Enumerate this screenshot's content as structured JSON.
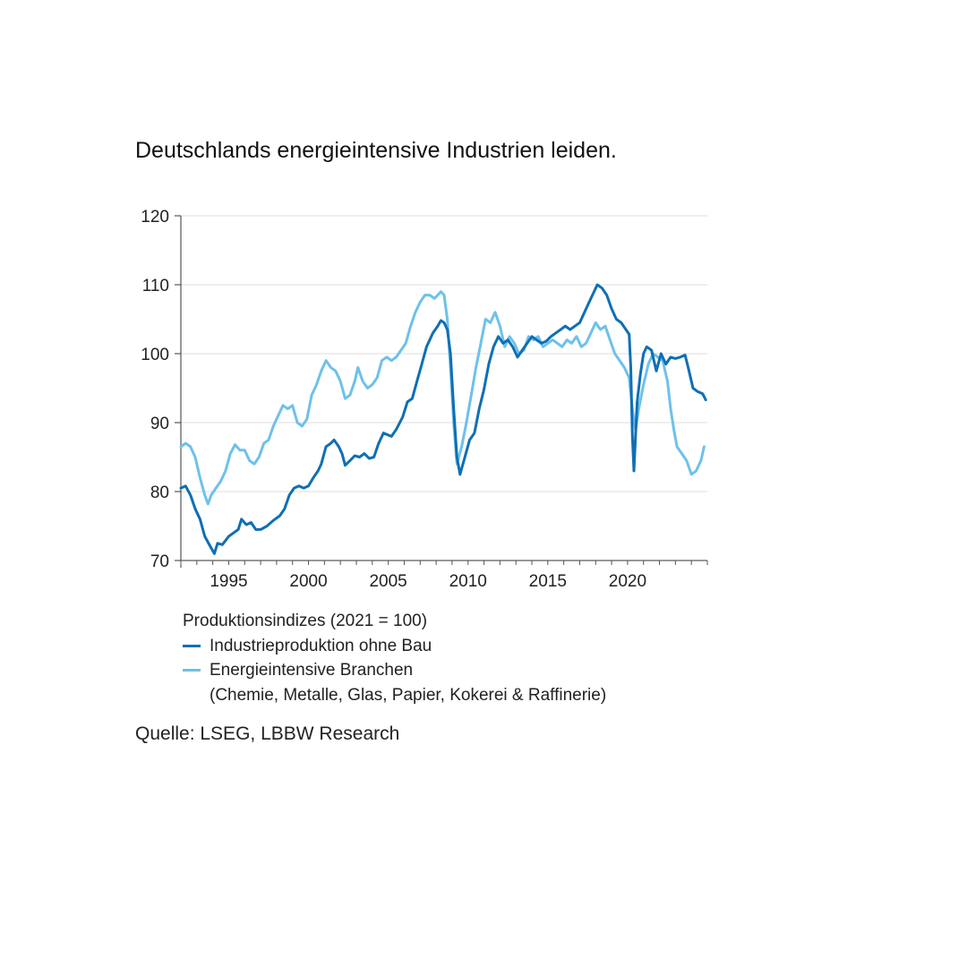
{
  "title": "Deutschlands energieintensive Industrien leiden.",
  "legend": {
    "heading": "Produktionsindizes (2021 = 100)",
    "items": [
      {
        "label": "Industrieproduktion ohne Bau",
        "color": "#0f6fb5"
      },
      {
        "label": "Energieintensive Branchen",
        "sublabel": "(Chemie, Metalle, Glas, Papier, Kokerei & Raffinerie)",
        "color": "#6ec1ea"
      }
    ]
  },
  "source": "Quelle: LSEG, LBBW Research",
  "chart_data": {
    "type": "line",
    "xlim": [
      1992.0,
      2025.0
    ],
    "ylim": [
      70,
      120
    ],
    "yticks": [
      70,
      80,
      90,
      100,
      110,
      120
    ],
    "xticks": [
      1995,
      2000,
      2005,
      2010,
      2015,
      2020
    ],
    "grid": true,
    "series": [
      {
        "name": "Industrieproduktion ohne Bau",
        "color": "#0f6fb5",
        "points": [
          [
            1992.0,
            80.5
          ],
          [
            1992.3,
            80.8
          ],
          [
            1992.6,
            79.5
          ],
          [
            1992.9,
            77.5
          ],
          [
            1993.2,
            76.0
          ],
          [
            1993.5,
            73.5
          ],
          [
            1993.9,
            71.8
          ],
          [
            1994.1,
            71.0
          ],
          [
            1994.3,
            72.5
          ],
          [
            1994.6,
            72.3
          ],
          [
            1995.0,
            73.5
          ],
          [
            1995.3,
            74.0
          ],
          [
            1995.6,
            74.5
          ],
          [
            1995.8,
            76.0
          ],
          [
            1996.1,
            75.2
          ],
          [
            1996.4,
            75.5
          ],
          [
            1996.7,
            74.5
          ],
          [
            1997.0,
            74.5
          ],
          [
            1997.4,
            75.0
          ],
          [
            1997.8,
            75.8
          ],
          [
            1998.2,
            76.5
          ],
          [
            1998.5,
            77.5
          ],
          [
            1998.8,
            79.5
          ],
          [
            1999.1,
            80.5
          ],
          [
            1999.4,
            80.8
          ],
          [
            1999.7,
            80.5
          ],
          [
            2000.0,
            80.8
          ],
          [
            2000.3,
            82.0
          ],
          [
            2000.6,
            83.0
          ],
          [
            2000.8,
            84.0
          ],
          [
            2001.1,
            86.5
          ],
          [
            2001.4,
            87.0
          ],
          [
            2001.6,
            87.5
          ],
          [
            2001.9,
            86.5
          ],
          [
            2002.1,
            85.5
          ],
          [
            2002.3,
            83.8
          ],
          [
            2002.6,
            84.5
          ],
          [
            2002.9,
            85.2
          ],
          [
            2003.2,
            85.0
          ],
          [
            2003.5,
            85.5
          ],
          [
            2003.8,
            84.8
          ],
          [
            2004.1,
            85.0
          ],
          [
            2004.4,
            87.0
          ],
          [
            2004.7,
            88.5
          ],
          [
            2005.0,
            88.2
          ],
          [
            2005.2,
            88.0
          ],
          [
            2005.5,
            89.0
          ],
          [
            2005.9,
            90.8
          ],
          [
            2006.2,
            93.0
          ],
          [
            2006.5,
            93.5
          ],
          [
            2006.8,
            96.0
          ],
          [
            2007.1,
            98.5
          ],
          [
            2007.4,
            101.0
          ],
          [
            2007.8,
            103.0
          ],
          [
            2008.1,
            104.0
          ],
          [
            2008.3,
            104.8
          ],
          [
            2008.5,
            104.5
          ],
          [
            2008.7,
            103.5
          ],
          [
            2008.9,
            100.0
          ],
          [
            2009.1,
            92.0
          ],
          [
            2009.3,
            85.0
          ],
          [
            2009.5,
            82.5
          ],
          [
            2009.8,
            85.0
          ],
          [
            2010.1,
            87.5
          ],
          [
            2010.4,
            88.5
          ],
          [
            2010.7,
            92.0
          ],
          [
            2011.0,
            94.8
          ],
          [
            2011.3,
            98.5
          ],
          [
            2011.6,
            101.0
          ],
          [
            2011.9,
            102.5
          ],
          [
            2012.2,
            101.5
          ],
          [
            2012.5,
            102.0
          ],
          [
            2012.8,
            101.0
          ],
          [
            2013.1,
            99.5
          ],
          [
            2013.4,
            100.5
          ],
          [
            2013.7,
            101.5
          ],
          [
            2014.0,
            102.5
          ],
          [
            2014.3,
            102.0
          ],
          [
            2014.6,
            101.5
          ],
          [
            2014.9,
            101.8
          ],
          [
            2015.2,
            102.5
          ],
          [
            2015.5,
            103.0
          ],
          [
            2015.8,
            103.5
          ],
          [
            2016.1,
            104.0
          ],
          [
            2016.4,
            103.5
          ],
          [
            2016.7,
            104.0
          ],
          [
            2017.0,
            104.5
          ],
          [
            2017.3,
            106.0
          ],
          [
            2017.6,
            107.5
          ],
          [
            2017.9,
            109.0
          ],
          [
            2018.1,
            110.0
          ],
          [
            2018.4,
            109.5
          ],
          [
            2018.7,
            108.5
          ],
          [
            2019.0,
            106.5
          ],
          [
            2019.3,
            105.0
          ],
          [
            2019.6,
            104.5
          ],
          [
            2019.9,
            103.5
          ],
          [
            2020.1,
            102.8
          ],
          [
            2020.2,
            98.0
          ],
          [
            2020.3,
            88.0
          ],
          [
            2020.4,
            83.0
          ],
          [
            2020.5,
            88.0
          ],
          [
            2020.6,
            93.0
          ],
          [
            2020.8,
            97.0
          ],
          [
            2021.0,
            100.0
          ],
          [
            2021.2,
            101.0
          ],
          [
            2021.5,
            100.5
          ],
          [
            2021.8,
            97.5
          ],
          [
            2022.1,
            100.0
          ],
          [
            2022.4,
            98.5
          ],
          [
            2022.7,
            99.5
          ],
          [
            2023.0,
            99.3
          ],
          [
            2023.3,
            99.5
          ],
          [
            2023.6,
            99.8
          ],
          [
            2023.8,
            98.0
          ],
          [
            2024.1,
            95.0
          ],
          [
            2024.4,
            94.5
          ],
          [
            2024.7,
            94.2
          ],
          [
            2024.9,
            93.3
          ]
        ]
      },
      {
        "name": "Energieintensive Branchen",
        "color": "#6ec1ea",
        "points": [
          [
            1992.0,
            86.5
          ],
          [
            1992.3,
            87.0
          ],
          [
            1992.6,
            86.5
          ],
          [
            1992.9,
            85.0
          ],
          [
            1993.2,
            82.0
          ],
          [
            1993.5,
            79.5
          ],
          [
            1993.7,
            78.2
          ],
          [
            1993.9,
            79.5
          ],
          [
            1994.2,
            80.5
          ],
          [
            1994.5,
            81.5
          ],
          [
            1994.8,
            83.0
          ],
          [
            1995.1,
            85.5
          ],
          [
            1995.4,
            86.8
          ],
          [
            1995.7,
            86.0
          ],
          [
            1996.0,
            86.0
          ],
          [
            1996.3,
            84.5
          ],
          [
            1996.6,
            84.0
          ],
          [
            1996.9,
            85.0
          ],
          [
            1997.2,
            87.0
          ],
          [
            1997.5,
            87.5
          ],
          [
            1997.8,
            89.5
          ],
          [
            1998.1,
            91.0
          ],
          [
            1998.4,
            92.5
          ],
          [
            1998.7,
            92.0
          ],
          [
            1999.0,
            92.5
          ],
          [
            1999.3,
            90.0
          ],
          [
            1999.6,
            89.5
          ],
          [
            1999.9,
            90.5
          ],
          [
            2000.2,
            94.0
          ],
          [
            2000.5,
            95.5
          ],
          [
            2000.8,
            97.5
          ],
          [
            2001.1,
            99.0
          ],
          [
            2001.4,
            98.0
          ],
          [
            2001.7,
            97.5
          ],
          [
            2002.0,
            96.0
          ],
          [
            2002.3,
            93.5
          ],
          [
            2002.6,
            94.0
          ],
          [
            2002.9,
            96.0
          ],
          [
            2003.1,
            98.0
          ],
          [
            2003.4,
            96.0
          ],
          [
            2003.7,
            95.0
          ],
          [
            2004.0,
            95.5
          ],
          [
            2004.3,
            96.5
          ],
          [
            2004.6,
            99.0
          ],
          [
            2004.9,
            99.5
          ],
          [
            2005.2,
            99.0
          ],
          [
            2005.5,
            99.5
          ],
          [
            2005.8,
            100.5
          ],
          [
            2006.1,
            101.5
          ],
          [
            2006.4,
            104.0
          ],
          [
            2006.7,
            106.0
          ],
          [
            2007.0,
            107.5
          ],
          [
            2007.3,
            108.5
          ],
          [
            2007.6,
            108.5
          ],
          [
            2007.9,
            108.0
          ],
          [
            2008.1,
            108.5
          ],
          [
            2008.3,
            109.0
          ],
          [
            2008.5,
            108.5
          ],
          [
            2008.7,
            105.0
          ],
          [
            2008.9,
            98.0
          ],
          [
            2009.1,
            90.0
          ],
          [
            2009.3,
            84.0
          ],
          [
            2009.6,
            86.5
          ],
          [
            2009.9,
            90.0
          ],
          [
            2010.2,
            94.0
          ],
          [
            2010.5,
            98.0
          ],
          [
            2010.8,
            101.5
          ],
          [
            2011.1,
            105.0
          ],
          [
            2011.4,
            104.5
          ],
          [
            2011.7,
            106.0
          ],
          [
            2012.0,
            104.0
          ],
          [
            2012.3,
            101.0
          ],
          [
            2012.6,
            102.5
          ],
          [
            2012.9,
            101.5
          ],
          [
            2013.2,
            100.0
          ],
          [
            2013.5,
            100.5
          ],
          [
            2013.8,
            102.5
          ],
          [
            2014.1,
            102.0
          ],
          [
            2014.4,
            102.5
          ],
          [
            2014.7,
            101.0
          ],
          [
            2015.0,
            101.5
          ],
          [
            2015.3,
            102.0
          ],
          [
            2015.6,
            101.5
          ],
          [
            2015.9,
            101.0
          ],
          [
            2016.2,
            102.0
          ],
          [
            2016.5,
            101.5
          ],
          [
            2016.8,
            102.5
          ],
          [
            2017.1,
            101.0
          ],
          [
            2017.4,
            101.5
          ],
          [
            2017.7,
            103.0
          ],
          [
            2018.0,
            104.5
          ],
          [
            2018.3,
            103.5
          ],
          [
            2018.6,
            104.0
          ],
          [
            2018.9,
            102.0
          ],
          [
            2019.2,
            100.0
          ],
          [
            2019.5,
            99.0
          ],
          [
            2019.8,
            98.0
          ],
          [
            2020.1,
            96.5
          ],
          [
            2020.3,
            92.0
          ],
          [
            2020.5,
            89.0
          ],
          [
            2020.7,
            92.0
          ],
          [
            2021.0,
            95.5
          ],
          [
            2021.3,
            98.5
          ],
          [
            2021.6,
            100.0
          ],
          [
            2021.9,
            99.5
          ],
          [
            2022.2,
            99.0
          ],
          [
            2022.5,
            96.0
          ],
          [
            2022.7,
            92.0
          ],
          [
            2022.9,
            89.0
          ],
          [
            2023.1,
            86.5
          ],
          [
            2023.4,
            85.5
          ],
          [
            2023.7,
            84.5
          ],
          [
            2024.0,
            82.5
          ],
          [
            2024.3,
            83.0
          ],
          [
            2024.6,
            84.5
          ],
          [
            2024.8,
            86.5
          ]
        ]
      }
    ]
  }
}
